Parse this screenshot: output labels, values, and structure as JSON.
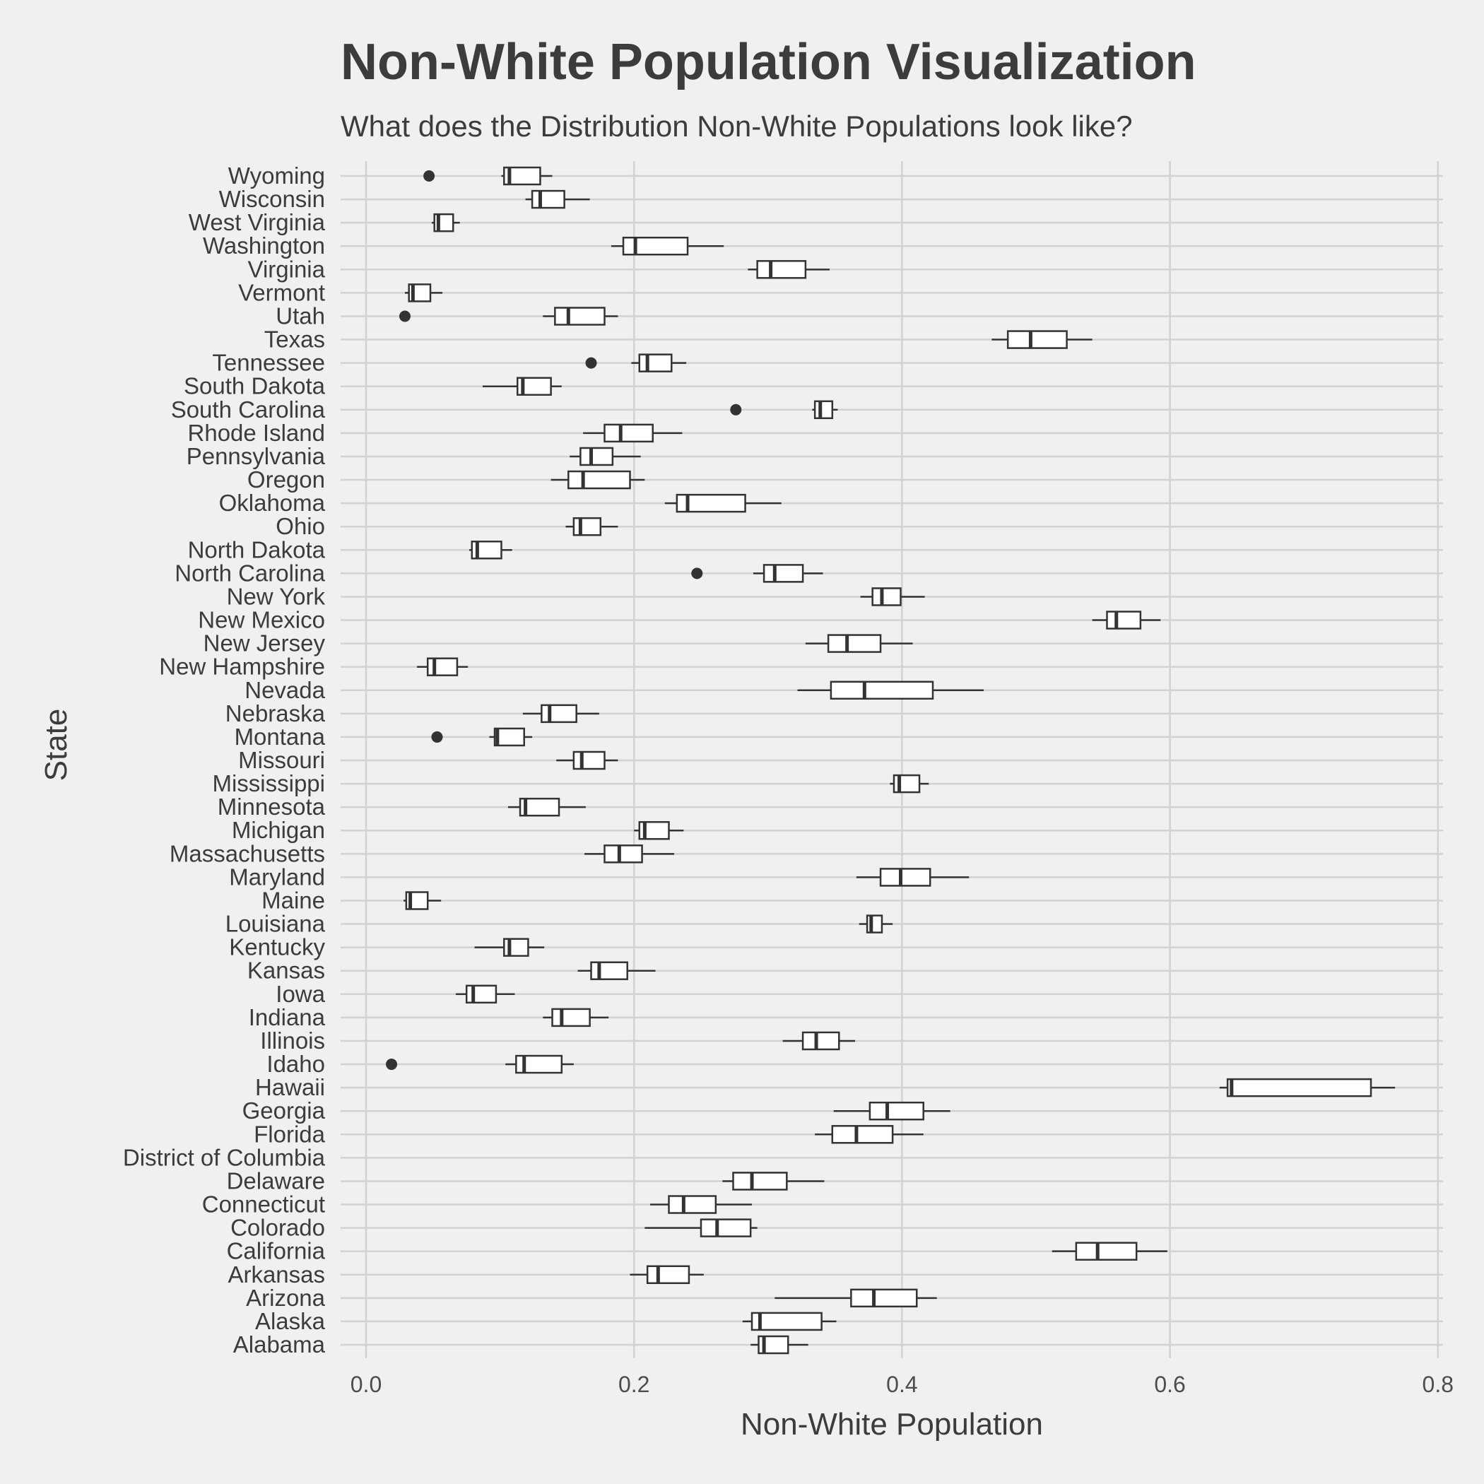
{
  "chart_data": {
    "type": "boxplot",
    "title": "Non-White Population Visualization",
    "subtitle": "What does the Distribution Non-White Populations look like?",
    "xlabel": "Non-White Population",
    "ylabel": "State",
    "xlim": [
      -0.015,
      0.805
    ],
    "xticks": [
      0.0,
      0.2,
      0.4,
      0.6,
      0.8
    ],
    "xtick_labels": [
      "0.0",
      "0.2",
      "0.4",
      "0.6",
      "0.8"
    ],
    "grid": true,
    "legend": "none",
    "colors": {
      "background": "#f0f0f0",
      "grid": "#d2d2d2",
      "box_fill": "#ffffff",
      "box_line": "#333333",
      "text": "#3c3c3c"
    },
    "boxes": [
      {
        "state": "Alabama",
        "low": 0.287,
        "q1": 0.293,
        "median": 0.297,
        "q3": 0.315,
        "high": 0.33,
        "outliers": []
      },
      {
        "state": "Alaska",
        "low": 0.281,
        "q1": 0.288,
        "median": 0.294,
        "q3": 0.34,
        "high": 0.351,
        "outliers": []
      },
      {
        "state": "Arizona",
        "low": 0.305,
        "q1": 0.362,
        "median": 0.379,
        "q3": 0.411,
        "high": 0.426,
        "outliers": []
      },
      {
        "state": "Arkansas",
        "low": 0.197,
        "q1": 0.21,
        "median": 0.218,
        "q3": 0.241,
        "high": 0.252,
        "outliers": []
      },
      {
        "state": "California",
        "low": 0.512,
        "q1": 0.53,
        "median": 0.546,
        "q3": 0.575,
        "high": 0.598,
        "outliers": []
      },
      {
        "state": "Colorado",
        "low": 0.208,
        "q1": 0.25,
        "median": 0.262,
        "q3": 0.287,
        "high": 0.292,
        "outliers": []
      },
      {
        "state": "Connecticut",
        "low": 0.212,
        "q1": 0.226,
        "median": 0.237,
        "q3": 0.261,
        "high": 0.288,
        "outliers": []
      },
      {
        "state": "Delaware",
        "low": 0.266,
        "q1": 0.274,
        "median": 0.288,
        "q3": 0.314,
        "high": 0.342,
        "outliers": []
      },
      {
        "state": "District of Columbia",
        "low": null,
        "q1": null,
        "median": null,
        "q3": null,
        "high": null,
        "outliers": []
      },
      {
        "state": "Florida",
        "low": 0.335,
        "q1": 0.348,
        "median": 0.366,
        "q3": 0.393,
        "high": 0.416,
        "outliers": []
      },
      {
        "state": "Georgia",
        "low": 0.349,
        "q1": 0.376,
        "median": 0.389,
        "q3": 0.416,
        "high": 0.436,
        "outliers": []
      },
      {
        "state": "Hawaii",
        "low": 0.637,
        "q1": 0.643,
        "median": 0.646,
        "q3": 0.75,
        "high": 0.768,
        "outliers": []
      },
      {
        "state": "Idaho",
        "low": 0.104,
        "q1": 0.112,
        "median": 0.118,
        "q3": 0.146,
        "high": 0.155,
        "outliers": [
          0.019
        ]
      },
      {
        "state": "Illinois",
        "low": 0.311,
        "q1": 0.326,
        "median": 0.336,
        "q3": 0.353,
        "high": 0.365,
        "outliers": []
      },
      {
        "state": "Indiana",
        "low": 0.132,
        "q1": 0.139,
        "median": 0.146,
        "q3": 0.167,
        "high": 0.181,
        "outliers": []
      },
      {
        "state": "Iowa",
        "low": 0.067,
        "q1": 0.075,
        "median": 0.08,
        "q3": 0.097,
        "high": 0.111,
        "outliers": []
      },
      {
        "state": "Kansas",
        "low": 0.158,
        "q1": 0.168,
        "median": 0.174,
        "q3": 0.195,
        "high": 0.216,
        "outliers": []
      },
      {
        "state": "Kentucky",
        "low": 0.081,
        "q1": 0.103,
        "median": 0.107,
        "q3": 0.121,
        "high": 0.133,
        "outliers": []
      },
      {
        "state": "Louisiana",
        "low": 0.368,
        "q1": 0.374,
        "median": 0.377,
        "q3": 0.385,
        "high": 0.393,
        "outliers": []
      },
      {
        "state": "Maine",
        "low": 0.028,
        "q1": 0.03,
        "median": 0.033,
        "q3": 0.046,
        "high": 0.056,
        "outliers": []
      },
      {
        "state": "Maryland",
        "low": 0.366,
        "q1": 0.384,
        "median": 0.399,
        "q3": 0.421,
        "high": 0.45,
        "outliers": []
      },
      {
        "state": "Massachusetts",
        "low": 0.163,
        "q1": 0.178,
        "median": 0.189,
        "q3": 0.206,
        "high": 0.23,
        "outliers": []
      },
      {
        "state": "Michigan",
        "low": 0.2,
        "q1": 0.204,
        "median": 0.208,
        "q3": 0.226,
        "high": 0.237,
        "outliers": []
      },
      {
        "state": "Minnesota",
        "low": 0.106,
        "q1": 0.115,
        "median": 0.119,
        "q3": 0.144,
        "high": 0.164,
        "outliers": []
      },
      {
        "state": "Mississippi",
        "low": 0.391,
        "q1": 0.394,
        "median": 0.398,
        "q3": 0.413,
        "high": 0.42,
        "outliers": []
      },
      {
        "state": "Missouri",
        "low": 0.142,
        "q1": 0.155,
        "median": 0.161,
        "q3": 0.178,
        "high": 0.188,
        "outliers": []
      },
      {
        "state": "Montana",
        "low": 0.092,
        "q1": 0.096,
        "median": 0.098,
        "q3": 0.118,
        "high": 0.124,
        "outliers": [
          0.053
        ]
      },
      {
        "state": "Nebraska",
        "low": 0.117,
        "q1": 0.131,
        "median": 0.137,
        "q3": 0.157,
        "high": 0.174,
        "outliers": []
      },
      {
        "state": "Nevada",
        "low": 0.322,
        "q1": 0.347,
        "median": 0.372,
        "q3": 0.423,
        "high": 0.461,
        "outliers": []
      },
      {
        "state": "New Hampshire",
        "low": 0.038,
        "q1": 0.046,
        "median": 0.051,
        "q3": 0.068,
        "high": 0.076,
        "outliers": []
      },
      {
        "state": "New Jersey",
        "low": 0.328,
        "q1": 0.345,
        "median": 0.359,
        "q3": 0.384,
        "high": 0.408,
        "outliers": []
      },
      {
        "state": "New Mexico",
        "low": 0.542,
        "q1": 0.553,
        "median": 0.56,
        "q3": 0.578,
        "high": 0.593,
        "outliers": []
      },
      {
        "state": "New York",
        "low": 0.369,
        "q1": 0.378,
        "median": 0.385,
        "q3": 0.399,
        "high": 0.417,
        "outliers": []
      },
      {
        "state": "North Carolina",
        "low": 0.289,
        "q1": 0.297,
        "median": 0.305,
        "q3": 0.326,
        "high": 0.341,
        "outliers": [
          0.247
        ]
      },
      {
        "state": "North Dakota",
        "low": 0.077,
        "q1": 0.079,
        "median": 0.083,
        "q3": 0.101,
        "high": 0.109,
        "outliers": []
      },
      {
        "state": "Ohio",
        "low": 0.149,
        "q1": 0.155,
        "median": 0.16,
        "q3": 0.175,
        "high": 0.188,
        "outliers": []
      },
      {
        "state": "Oklahoma",
        "low": 0.223,
        "q1": 0.232,
        "median": 0.24,
        "q3": 0.283,
        "high": 0.31,
        "outliers": []
      },
      {
        "state": "Oregon",
        "low": 0.138,
        "q1": 0.151,
        "median": 0.162,
        "q3": 0.197,
        "high": 0.208,
        "outliers": []
      },
      {
        "state": "Pennsylvania",
        "low": 0.152,
        "q1": 0.16,
        "median": 0.168,
        "q3": 0.184,
        "high": 0.205,
        "outliers": []
      },
      {
        "state": "Rhode Island",
        "low": 0.162,
        "q1": 0.178,
        "median": 0.19,
        "q3": 0.214,
        "high": 0.236,
        "outliers": []
      },
      {
        "state": "South Carolina",
        "low": 0.333,
        "q1": 0.335,
        "median": 0.339,
        "q3": 0.348,
        "high": 0.352,
        "outliers": [
          0.276
        ]
      },
      {
        "state": "South Dakota",
        "low": 0.087,
        "q1": 0.113,
        "median": 0.117,
        "q3": 0.138,
        "high": 0.146,
        "outliers": []
      },
      {
        "state": "Tennessee",
        "low": 0.198,
        "q1": 0.204,
        "median": 0.21,
        "q3": 0.228,
        "high": 0.239,
        "outliers": [
          0.168
        ]
      },
      {
        "state": "Texas",
        "low": 0.467,
        "q1": 0.479,
        "median": 0.496,
        "q3": 0.523,
        "high": 0.542,
        "outliers": []
      },
      {
        "state": "Utah",
        "low": 0.132,
        "q1": 0.141,
        "median": 0.151,
        "q3": 0.178,
        "high": 0.188,
        "outliers": [
          0.029
        ]
      },
      {
        "state": "Vermont",
        "low": 0.029,
        "q1": 0.032,
        "median": 0.035,
        "q3": 0.048,
        "high": 0.057,
        "outliers": []
      },
      {
        "state": "Virginia",
        "low": 0.285,
        "q1": 0.292,
        "median": 0.302,
        "q3": 0.328,
        "high": 0.346,
        "outliers": []
      },
      {
        "state": "Washington",
        "low": 0.183,
        "q1": 0.192,
        "median": 0.201,
        "q3": 0.24,
        "high": 0.267,
        "outliers": []
      },
      {
        "state": "West Virginia",
        "low": 0.049,
        "q1": 0.051,
        "median": 0.054,
        "q3": 0.065,
        "high": 0.07,
        "outliers": []
      },
      {
        "state": "Wisconsin",
        "low": 0.119,
        "q1": 0.124,
        "median": 0.13,
        "q3": 0.148,
        "high": 0.167,
        "outliers": []
      },
      {
        "state": "Wyoming",
        "low": 0.101,
        "q1": 0.103,
        "median": 0.107,
        "q3": 0.13,
        "high": 0.139,
        "outliers": [
          0.047
        ]
      }
    ]
  }
}
